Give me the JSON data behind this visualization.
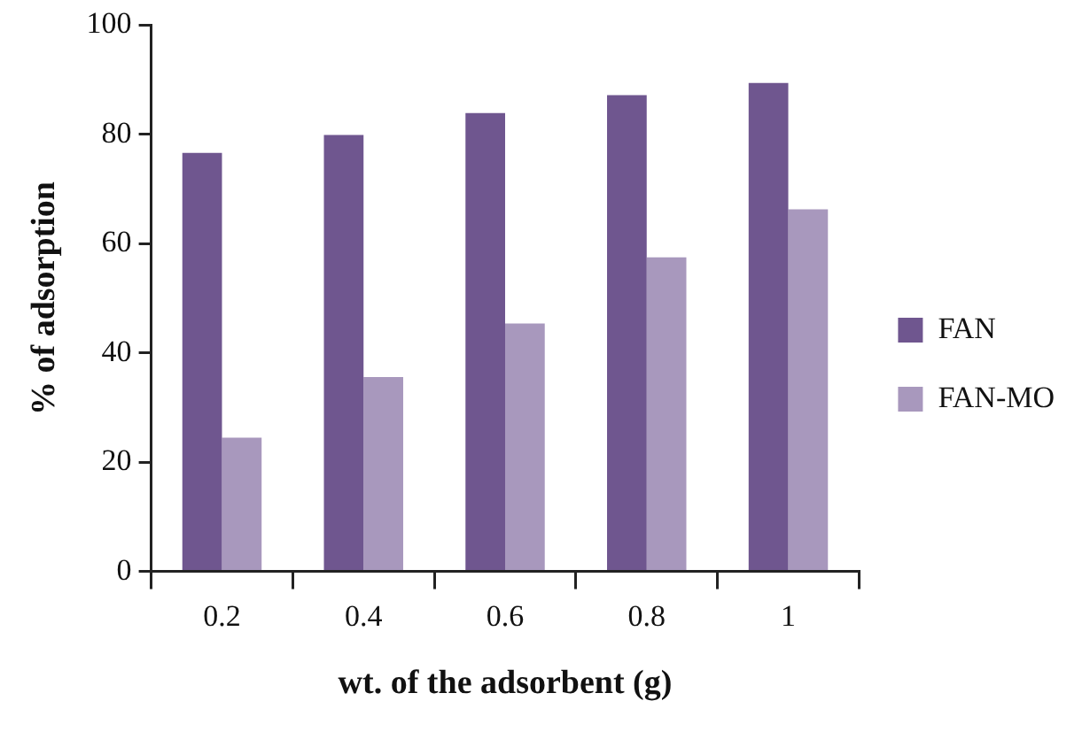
{
  "chart_data": {
    "type": "bar",
    "xlabel": "wt. of the adsorbent (g)",
    "ylabel": "% of adsorption",
    "categories": [
      "0.2",
      "0.4",
      "0.6",
      "0.8",
      "1"
    ],
    "series": [
      {
        "name": "FAN",
        "color": "#6f568f",
        "values": [
          76.6,
          79.9,
          83.9,
          87.2,
          89.4
        ]
      },
      {
        "name": "FAN-MO",
        "color": "#a898bd",
        "values": [
          24.5,
          35.6,
          45.4,
          57.5,
          66.3
        ]
      }
    ],
    "ylim": [
      0,
      100
    ],
    "yticks": [
      0,
      20,
      40,
      60,
      80,
      100
    ],
    "grid": false,
    "legend": "right"
  }
}
